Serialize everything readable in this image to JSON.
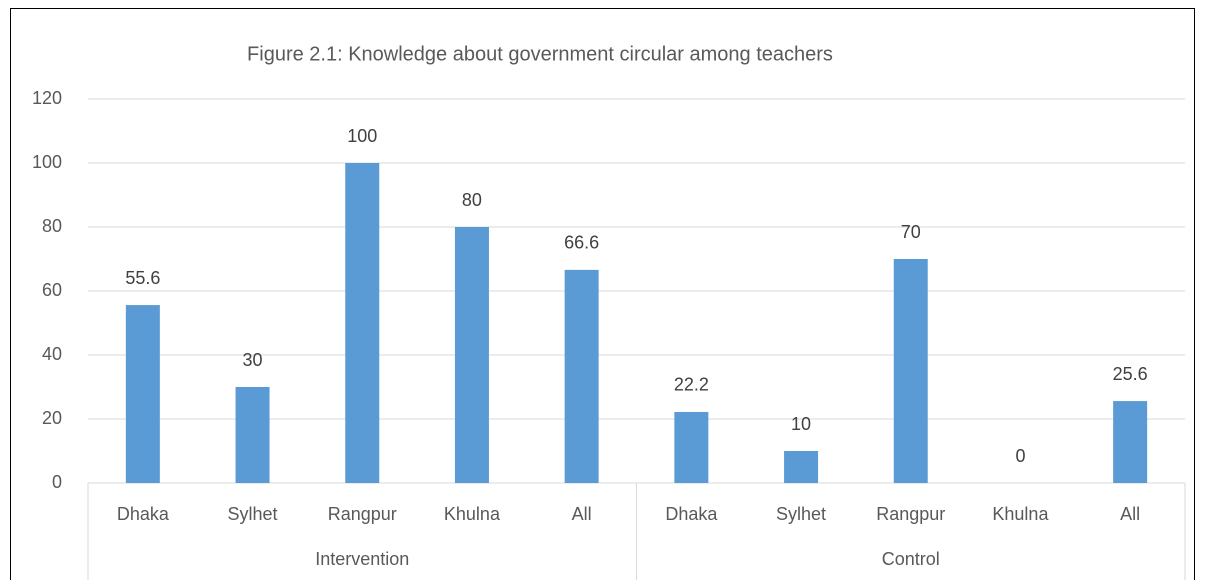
{
  "chart_data": {
    "type": "bar",
    "title": "Figure 2.1: Knowledge about government circular among teachers",
    "groups": [
      "Intervention",
      "Control"
    ],
    "categories": [
      "Dhaka",
      "Sylhet",
      "Rangpur",
      "Khulna",
      "All",
      "Dhaka",
      "Sylhet",
      "Rangpur",
      "Khulna",
      "All"
    ],
    "values": [
      55.6,
      30,
      100,
      80,
      66.6,
      22.2,
      10,
      70,
      0,
      25.6
    ],
    "color": "#5b9bd5",
    "ylim": [
      0,
      120
    ],
    "yticks": [
      0,
      20,
      40,
      60,
      80,
      100,
      120
    ],
    "grid": true
  }
}
